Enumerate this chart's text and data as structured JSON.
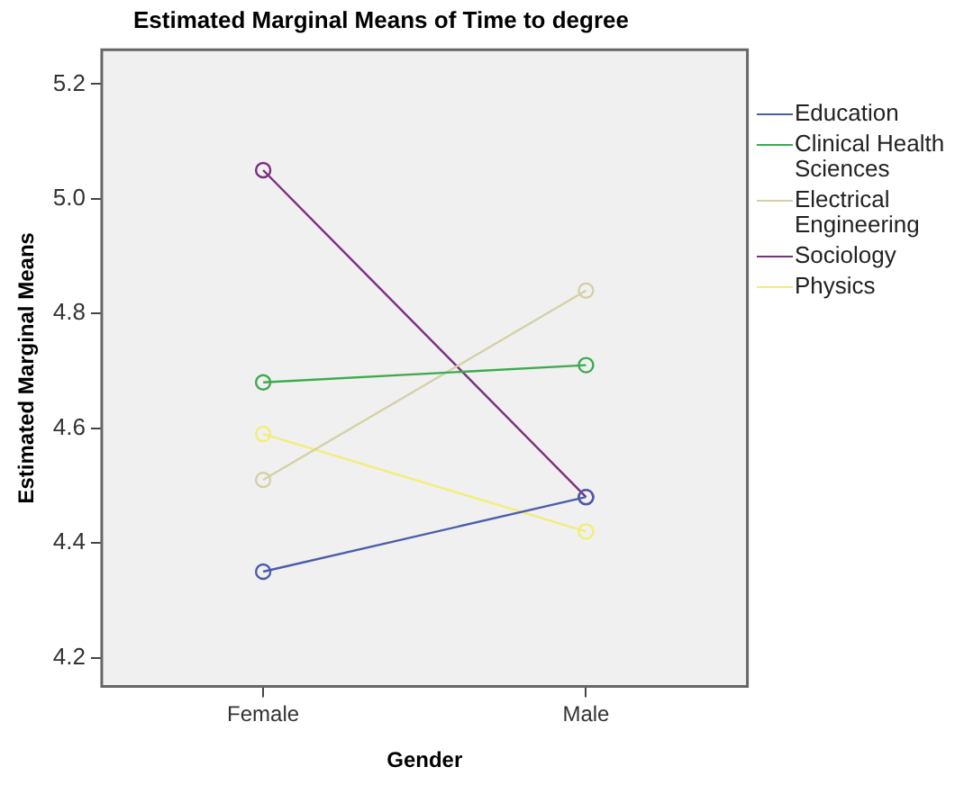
{
  "chart_data": {
    "type": "line",
    "title": "Estimated Marginal Means of Time to degree",
    "xlabel": "Gender",
    "ylabel": "Estimated Marginal Means",
    "categories": [
      "Female",
      "Male"
    ],
    "series": [
      {
        "name": "Education",
        "color": "#4a5eaa",
        "values": [
          4.35,
          4.48
        ]
      },
      {
        "name": "Clinical Health Sciences",
        "color": "#3cab4e",
        "values": [
          4.68,
          4.71
        ]
      },
      {
        "name": "Electrical Engineering",
        "color": "#d4d1a6",
        "values": [
          4.51,
          4.84
        ]
      },
      {
        "name": "Sociology",
        "color": "#7b2f7f",
        "values": [
          5.05,
          4.48
        ]
      },
      {
        "name": "Physics",
        "color": "#f2ee78",
        "values": [
          4.59,
          4.42
        ]
      }
    ],
    "ylim": [
      4.15,
      5.26
    ],
    "yticks": [
      {
        "value": 4.2,
        "label": "4.2"
      },
      {
        "value": 4.4,
        "label": "4.4"
      },
      {
        "value": 4.6,
        "label": "4.6"
      },
      {
        "value": 4.8,
        "label": "4.8"
      },
      {
        "value": 5.0,
        "label": "5.0"
      },
      {
        "value": 5.2,
        "label": "5.2"
      }
    ],
    "grid": false,
    "legend": "right",
    "marker": "circle",
    "line_style": "solid"
  }
}
